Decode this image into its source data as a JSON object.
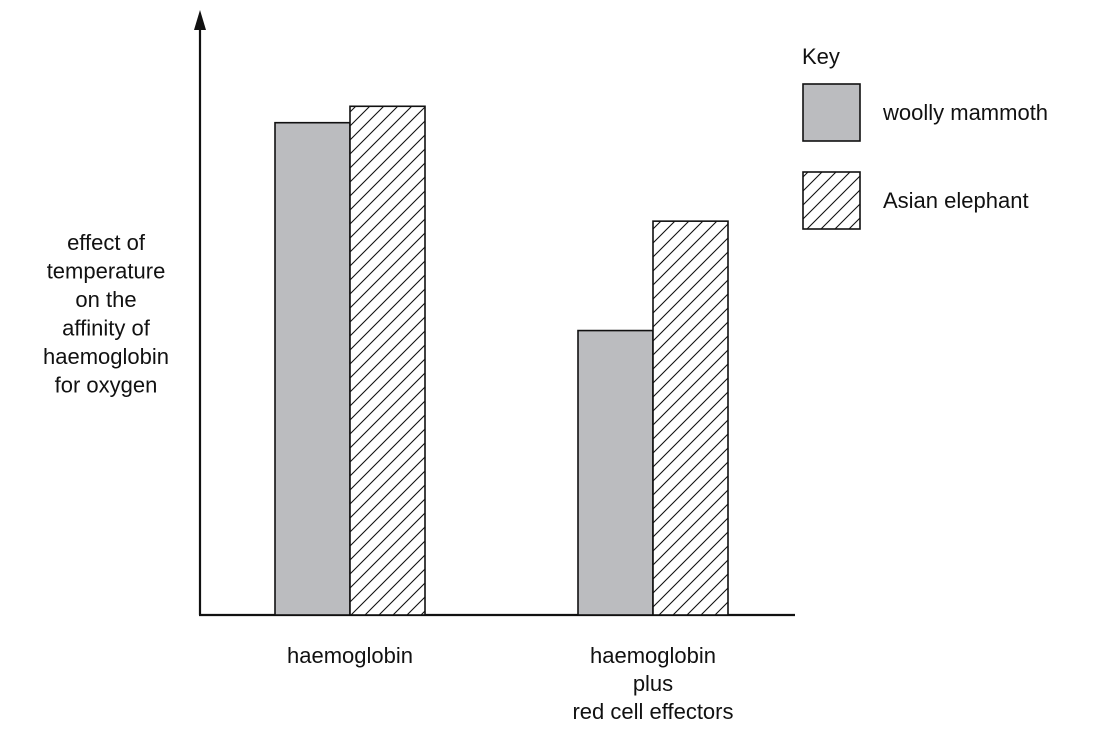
{
  "chart_data": {
    "type": "bar",
    "title": "",
    "xlabel": "",
    "ylabel_lines": [
      "effect of",
      "temperature",
      "on the",
      "affinity of",
      "haemoglobin",
      "for oxygen"
    ],
    "categories": [
      {
        "lines": [
          "haemoglobin"
        ]
      },
      {
        "lines": [
          "haemoglobin",
          "plus",
          "red cell effectors"
        ]
      }
    ],
    "series": [
      {
        "name": "woolly mammoth",
        "values": [
          0.9,
          0.52
        ],
        "fill": "solid"
      },
      {
        "name": "Asian elephant",
        "values": [
          0.93,
          0.72
        ],
        "fill": "hatch"
      }
    ],
    "ylim": [
      0,
      1
    ],
    "y_ticks": false,
    "grid": false,
    "legend": {
      "title": "Key",
      "placement": "top-right"
    },
    "colors": {
      "bar_fill": "#bbbcbf",
      "stroke": "#111111",
      "hatch_bg": "#ffffff"
    }
  }
}
